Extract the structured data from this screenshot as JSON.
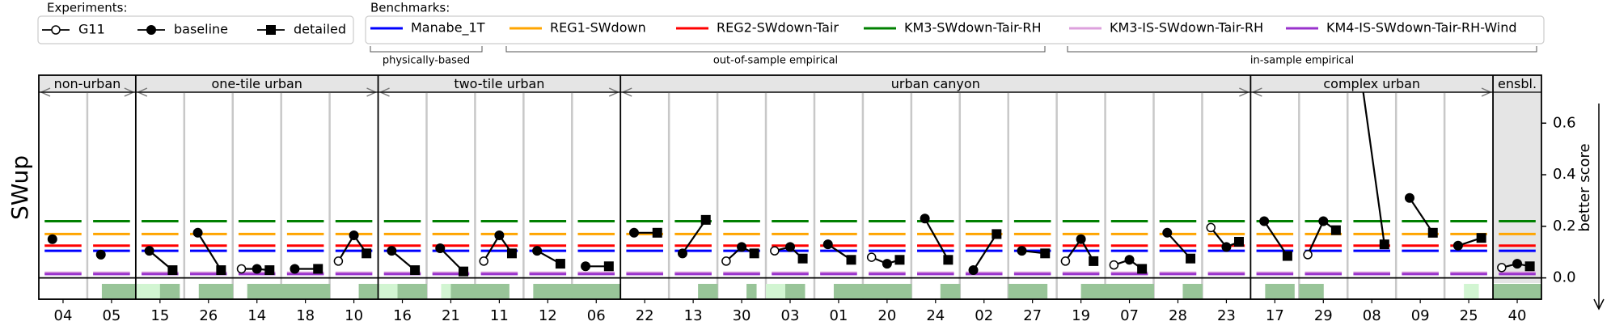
{
  "legend_experiments": {
    "title": "Experiments:",
    "items": [
      {
        "name": "G11",
        "marker": "open-circle"
      },
      {
        "name": "baseline",
        "marker": "filled-circle"
      },
      {
        "name": "detailed",
        "marker": "filled-square"
      }
    ]
  },
  "legend_benchmarks": {
    "title": "Benchmarks:",
    "items": [
      {
        "name": "Manabe_1T",
        "color": "#0000ff"
      },
      {
        "name": "REG1-SWdown",
        "color": "#ffa500"
      },
      {
        "name": "REG2-SWdown-Tair",
        "color": "#ff0000"
      },
      {
        "name": "KM3-SWdown-Tair-RH",
        "color": "#008000"
      },
      {
        "name": "KM3-IS-SWdown-Tair-RH",
        "color": "#dda0dd"
      },
      {
        "name": "KM4-IS-SWdown-Tair-RH-Wind",
        "color": "#9932cc"
      }
    ],
    "brackets": [
      "physically-based",
      "out-of-sample empirical",
      "in-sample empirical"
    ]
  },
  "chart_data": {
    "type": "scatter",
    "ylabel": "SWup",
    "right_label": "better score",
    "ylim": [
      -0.02,
      0.72
    ],
    "yticks": [
      "0.0",
      "0.2",
      "0.4",
      "0.6"
    ],
    "groups": [
      "non-urban",
      "one-tile urban",
      "two-tile urban",
      "urban canyon",
      "complex urban",
      "ensbl."
    ],
    "categories": [
      "04",
      "05",
      "15",
      "26",
      "14",
      "18",
      "10",
      "16",
      "21",
      "11",
      "12",
      "06",
      "22",
      "13",
      "30",
      "03",
      "01",
      "20",
      "24",
      "02",
      "27",
      "19",
      "07",
      "28",
      "23",
      "17",
      "29",
      "08",
      "09",
      "25",
      "40"
    ],
    "group_of_category": [
      0,
      0,
      1,
      1,
      1,
      1,
      1,
      2,
      2,
      2,
      2,
      2,
      3,
      3,
      3,
      3,
      3,
      3,
      3,
      3,
      3,
      3,
      3,
      3,
      3,
      4,
      4,
      4,
      4,
      4,
      5
    ],
    "benchmark_values": {
      "Manabe_1T": 0.105,
      "REG1-SWdown": 0.17,
      "REG2-SWdown-Tair": 0.125,
      "KM3-SWdown-Tair-RH": 0.22,
      "KM3-IS-SWdown-Tair-RH": 0.02,
      "KM4-IS-SWdown-Tair-RH-Wind": 0.015
    },
    "series": [
      {
        "name": "G11",
        "values": [
          null,
          null,
          null,
          null,
          0.035,
          null,
          0.065,
          null,
          null,
          0.065,
          null,
          null,
          null,
          null,
          0.065,
          0.105,
          null,
          0.08,
          null,
          null,
          null,
          0.065,
          0.05,
          null,
          0.195,
          null,
          0.09,
          null,
          null,
          null,
          0.04
        ]
      },
      {
        "name": "baseline",
        "values": [
          0.15,
          0.09,
          0.105,
          0.175,
          0.035,
          0.035,
          0.165,
          0.105,
          0.115,
          0.165,
          0.105,
          0.045,
          0.175,
          0.095,
          0.12,
          0.12,
          0.13,
          0.055,
          0.23,
          0.03,
          0.105,
          0.15,
          0.07,
          0.175,
          0.12,
          0.22,
          0.22,
          0.78,
          0.31,
          0.125,
          0.055
        ]
      },
      {
        "name": "detailed",
        "values": [
          null,
          null,
          0.03,
          0.03,
          0.03,
          0.035,
          0.095,
          0.03,
          0.025,
          0.095,
          0.055,
          0.045,
          0.175,
          0.225,
          0.095,
          0.075,
          0.07,
          0.07,
          0.07,
          0.17,
          0.095,
          0.065,
          0.035,
          0.075,
          0.14,
          0.085,
          0.185,
          0.13,
          0.175,
          0.155,
          0.045
        ]
      }
    ],
    "forcing_bar_legend": "",
    "forcing_bars": [
      [
        0,
        0,
        0,
        0,
        0,
        0,
        0,
        0,
        0,
        0
      ],
      [
        0,
        0,
        0,
        2,
        2,
        2,
        2,
        2,
        2,
        2
      ],
      [
        1,
        1,
        1,
        1,
        1,
        2,
        2,
        2,
        2,
        0
      ],
      [
        0,
        0,
        0,
        2,
        2,
        2,
        2,
        2,
        2,
        2
      ],
      [
        0,
        0,
        0,
        2,
        2,
        2,
        2,
        2,
        2,
        2
      ],
      [
        2,
        2,
        2,
        2,
        2,
        2,
        2,
        2,
        2,
        2
      ],
      [
        0,
        0,
        0,
        0,
        0,
        0,
        2,
        2,
        2,
        2
      ],
      [
        1,
        1,
        1,
        1,
        2,
        2,
        2,
        2,
        2,
        2
      ],
      [
        0,
        0,
        0,
        1,
        1,
        2,
        2,
        2,
        2,
        2
      ],
      [
        2,
        2,
        2,
        2,
        2,
        2,
        2,
        0,
        0,
        0
      ],
      [
        0,
        0,
        2,
        2,
        2,
        2,
        2,
        2,
        2,
        2
      ],
      [
        2,
        2,
        2,
        2,
        2,
        2,
        2,
        2,
        2,
        2
      ],
      [
        0,
        0,
        0,
        0,
        0,
        0,
        0,
        0,
        0,
        0
      ],
      [
        0,
        0,
        0,
        0,
        0,
        0,
        2,
        2,
        2,
        2
      ],
      [
        0,
        0,
        0,
        0,
        0,
        0,
        2,
        2,
        0,
        0
      ],
      [
        1,
        1,
        1,
        1,
        2,
        2,
        2,
        2,
        0,
        0
      ],
      [
        0,
        0,
        0,
        0,
        2,
        2,
        2,
        2,
        2,
        2
      ],
      [
        2,
        2,
        2,
        2,
        2,
        2,
        2,
        2,
        2,
        2
      ],
      [
        0,
        0,
        0,
        0,
        0,
        0,
        2,
        2,
        2,
        2
      ],
      [
        0,
        0,
        0,
        0,
        0,
        0,
        0,
        0,
        0,
        0
      ],
      [
        2,
        2,
        2,
        2,
        2,
        2,
        2,
        2,
        0,
        0
      ],
      [
        0,
        0,
        0,
        0,
        0,
        2,
        2,
        2,
        2,
        2
      ],
      [
        2,
        2,
        2,
        2,
        2,
        2,
        2,
        2,
        2,
        2
      ],
      [
        0,
        0,
        0,
        0,
        0,
        0,
        2,
        2,
        2,
        2
      ],
      [
        0,
        0,
        0,
        0,
        0,
        0,
        0,
        0,
        0,
        0
      ],
      [
        0,
        0,
        0,
        2,
        2,
        2,
        2,
        2,
        2,
        0
      ],
      [
        2,
        2,
        2,
        2,
        2,
        0,
        0,
        0,
        0,
        0
      ],
      [
        0,
        0,
        0,
        0,
        0,
        0,
        0,
        0,
        0,
        0
      ],
      [
        0,
        0,
        0,
        0,
        0,
        0,
        0,
        0,
        0,
        0
      ],
      [
        0,
        0,
        0,
        0,
        1,
        1,
        1,
        0,
        0,
        0
      ],
      [
        2,
        2,
        2,
        2,
        2,
        2,
        2,
        2,
        2,
        2
      ]
    ]
  }
}
